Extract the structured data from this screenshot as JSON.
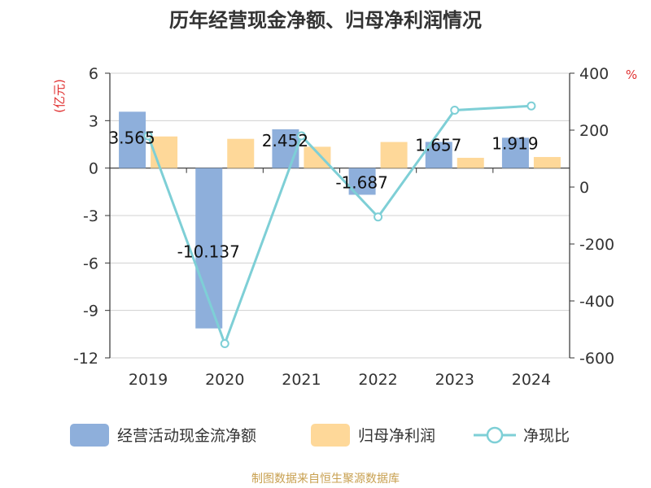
{
  "chart_data": {
    "type": "bar+line",
    "title": "历年经营现金净额、归母净利润情况",
    "categories": [
      "2019",
      "2020",
      "2021",
      "2022",
      "2023",
      "2024"
    ],
    "series": [
      {
        "name": "经营活动现金流净额",
        "kind": "bar",
        "axis": "left",
        "color": "#8eafdb",
        "values": [
          3.565,
          -10.137,
          2.452,
          -1.687,
          1.657,
          1.919
        ],
        "labels": [
          "3.565",
          "-10.137",
          "2.452",
          "-1.687",
          "1.657",
          "1.919"
        ]
      },
      {
        "name": "归母净利润",
        "kind": "bar",
        "axis": "left",
        "color": "#fed899",
        "values": [
          2.0,
          1.85,
          1.35,
          1.65,
          0.65,
          0.7
        ]
      },
      {
        "name": "净现比",
        "kind": "line",
        "axis": "right",
        "color": "#7ecfd6",
        "values": [
          180,
          -550,
          180,
          -105,
          270,
          285
        ]
      }
    ],
    "y_left": {
      "unit": "(亿元)",
      "min": -12,
      "max": 6,
      "ticks": [
        6,
        3,
        0,
        -3,
        -6,
        -9,
        -12
      ],
      "tick_labels": [
        "6",
        "3",
        "0",
        "-3",
        "-6",
        "-9",
        "-12"
      ]
    },
    "y_right": {
      "unit": "%",
      "min": -600,
      "max": 400,
      "ticks": [
        400,
        200,
        0,
        -200,
        -400,
        -600
      ],
      "tick_labels": [
        "400",
        "200",
        "0",
        "-200",
        "-400",
        "-600"
      ]
    },
    "grid": true,
    "legend_position": "bottom",
    "source": "制图数据来自恒生聚源数据库"
  },
  "colors": {
    "unit_label": "#e03030",
    "source_text": "#c8a050",
    "grid": "#d0d0d0",
    "axis": "#333333"
  }
}
